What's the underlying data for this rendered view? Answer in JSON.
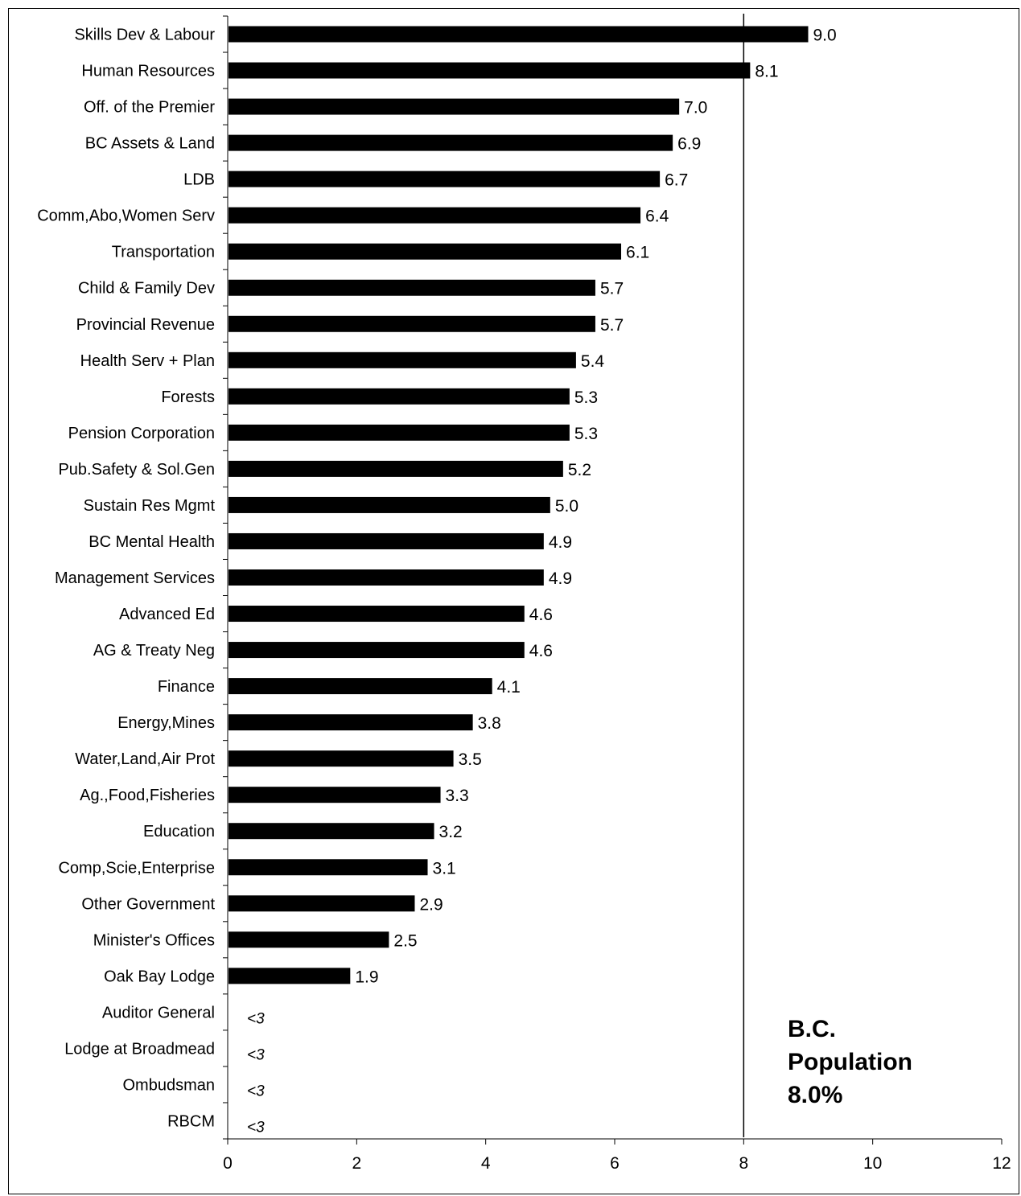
{
  "chart_data": {
    "type": "bar",
    "orientation": "horizontal",
    "categories": [
      "Skills Dev & Labour",
      "Human Resources",
      "Off. of the Premier",
      "BC Assets & Land",
      "LDB",
      "Comm,Abo,Women Serv",
      "Transportation",
      "Child & Family Dev",
      "Provincial Revenue",
      "Health Serv + Plan",
      "Forests",
      "Pension Corporation",
      "Pub.Safety & Sol.Gen",
      "Sustain Res Mgmt",
      "BC Mental Health",
      "Management Services",
      "Advanced Ed",
      "AG & Treaty Neg",
      "Finance",
      "Energy,Mines",
      "Water,Land,Air Prot",
      "Ag.,Food,Fisheries",
      "Education",
      "Comp,Scie,Enterprise",
      "Other Government",
      "Minister's Offices",
      "Oak Bay Lodge",
      "Auditor General",
      "Lodge at Broadmead",
      "Ombudsman",
      "RBCM"
    ],
    "values": [
      9.0,
      8.1,
      7.0,
      6.9,
      6.7,
      6.4,
      6.1,
      5.7,
      5.7,
      5.4,
      5.3,
      5.3,
      5.2,
      5.0,
      4.9,
      4.9,
      4.6,
      4.6,
      4.1,
      3.8,
      3.5,
      3.3,
      3.2,
      3.1,
      2.9,
      2.5,
      1.9,
      null,
      null,
      null,
      null
    ],
    "data_labels": [
      "9.0",
      "8.1",
      "7.0",
      "6.9",
      "6.7",
      "6.4",
      "6.1",
      "5.7",
      "5.7",
      "5.4",
      "5.3",
      "5.3",
      "5.2",
      "5.0",
      "4.9",
      "4.9",
      "4.6",
      "4.6",
      "4.1",
      "3.8",
      "3.5",
      "3.3",
      "3.2",
      "3.1",
      "2.9",
      "2.5",
      "1.9",
      "<3",
      "<3",
      "<3",
      "<3"
    ],
    "xlim": [
      0,
      12
    ],
    "xticks": [
      0,
      2,
      4,
      6,
      8,
      10,
      12
    ],
    "xtick_labels": [
      "0",
      "2",
      "4",
      "6",
      "8",
      "10",
      "12"
    ],
    "reference_line": {
      "value": 8.0,
      "label_lines": [
        "B.C.",
        "Population",
        "8.0%"
      ]
    },
    "bar_color": "#000000",
    "title": "",
    "xlabel": "",
    "ylabel": "",
    "grid": false,
    "legend": "none"
  }
}
